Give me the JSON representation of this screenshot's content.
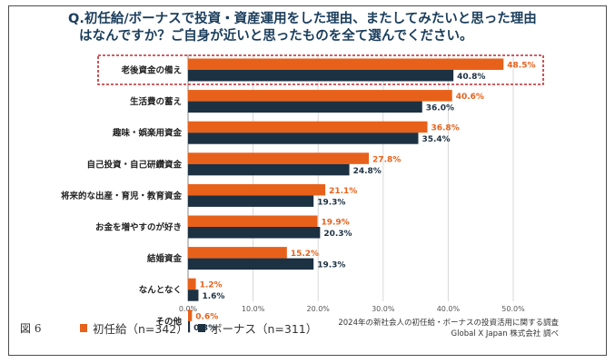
{
  "title": {
    "line1": "Q.初任給/ボーナスで投資・資産運用をした理由、またしてみたいと思った理由",
    "line2": "はなんですか？ご自身が近いと思ったものを全て選んでください。"
  },
  "figure_label": "図 6",
  "legend": {
    "series1_label": "初任給（n=342）",
    "series2_label": "ボーナス（n=311）"
  },
  "source": {
    "line1": "2024年の新社会人の初任給・ボーナスの投資活用に関する調査",
    "line2": "Global X Japan 株式会社 調べ"
  },
  "colors": {
    "series1": "#e8611a",
    "series2": "#1c3142",
    "highlight": "#c0282d",
    "grid": "#d9d9d9"
  },
  "chart_data": {
    "type": "bar",
    "orientation": "horizontal",
    "categories": [
      "老後資金の備え",
      "生活費の蓄え",
      "趣味・娯楽用資金",
      "自己投資・自己研鑽資金",
      "将来的な出産・育児・教育資金",
      "お金を増やすのが好き",
      "結婚資金",
      "なんとなく",
      "その他"
    ],
    "series": [
      {
        "name": "初任給（n=342）",
        "values": [
          48.5,
          40.6,
          36.8,
          27.8,
          21.1,
          19.9,
          15.2,
          1.2,
          0.6
        ],
        "labels": [
          "48.5%",
          "40.6%",
          "36.8%",
          "27.8%",
          "21.1%",
          "19.9%",
          "15.2%",
          "1.2%",
          "0.6%"
        ]
      },
      {
        "name": "ボーナス（n=311）",
        "values": [
          40.8,
          36.0,
          35.4,
          24.8,
          19.3,
          20.3,
          19.3,
          1.6,
          0.3
        ],
        "labels": [
          "40.8%",
          "36.0%",
          "35.4%",
          "24.8%",
          "19.3%",
          "20.3%",
          "19.3%",
          "1.6%",
          "0.3%"
        ]
      }
    ],
    "xlim": [
      0,
      50
    ],
    "xticks": [
      0,
      10,
      20,
      30,
      40,
      50
    ],
    "xtick_labels": [
      "0.0%",
      "10.0%",
      "20.0%",
      "30.0%",
      "40.0%",
      "50.0%"
    ],
    "highlighted_category": "老後資金の備え",
    "grid": true,
    "legend_position": "bottom"
  }
}
